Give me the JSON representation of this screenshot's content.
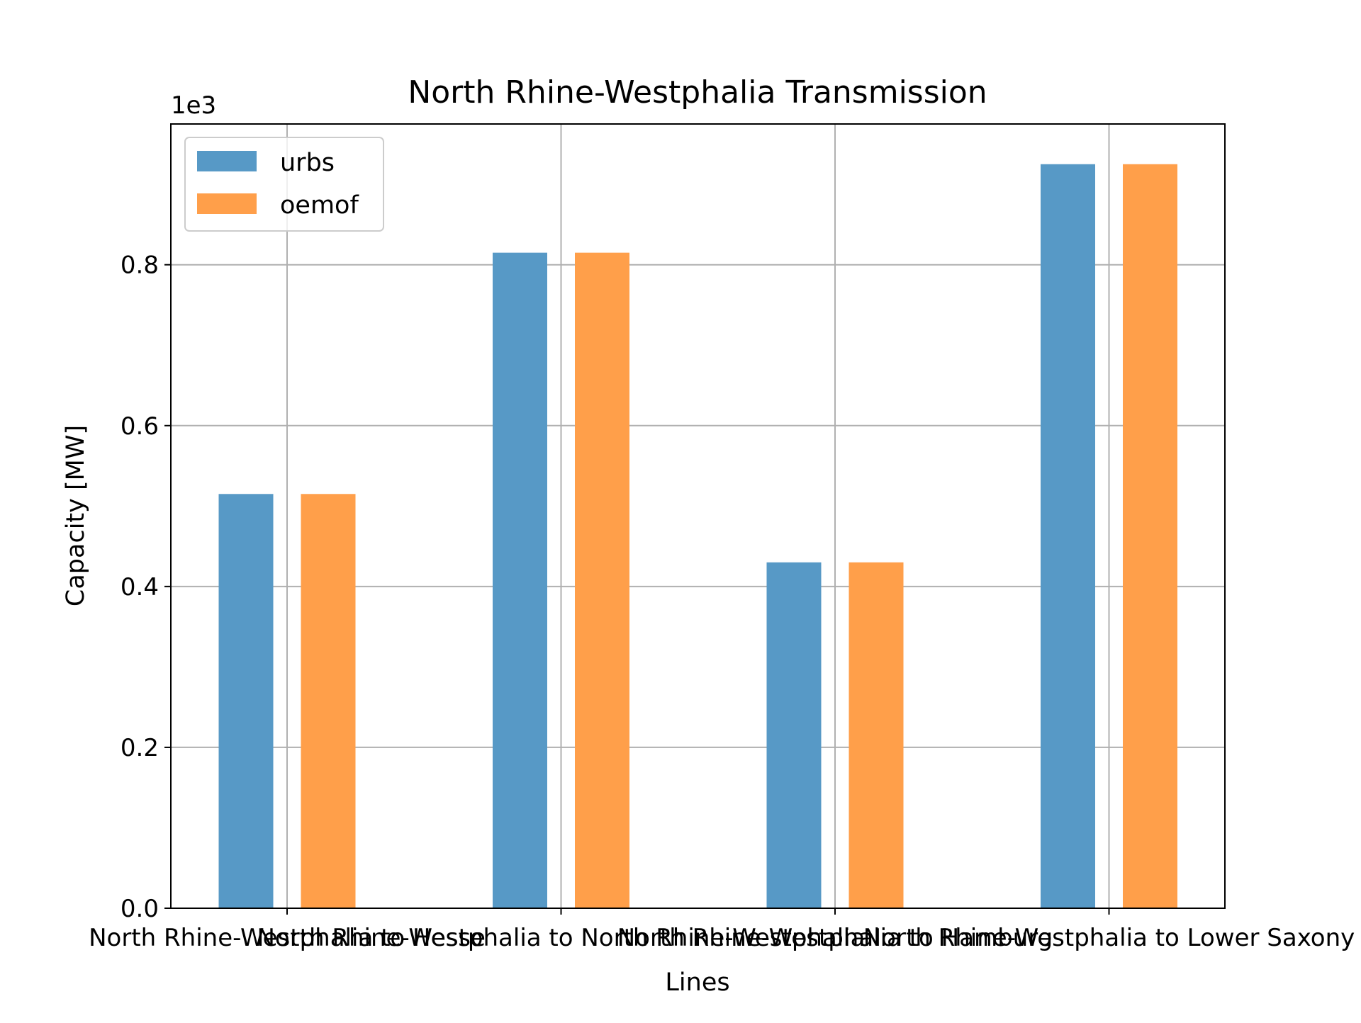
{
  "chart_data": {
    "type": "bar",
    "title": "North Rhine-Westphalia Transmission",
    "xlabel": "Lines",
    "ylabel": "Capacity [MW]",
    "y_multiplier": "1e3",
    "categories": [
      "North Rhine-Westphalia to Hesse",
      "North Rhine-Westphalia to North Rhine-Westphalia",
      "North Rhine-Westphalia to Hamburg",
      "North Rhine-Westphalia to Lower Saxony"
    ],
    "series": [
      {
        "name": "urbs",
        "color": "#5799c6",
        "values": [
          515,
          815,
          430,
          925
        ]
      },
      {
        "name": "oemof",
        "color": "#ff9f4a",
        "values": [
          515,
          815,
          430,
          925
        ]
      }
    ],
    "y_ticks": [
      0.0,
      0.2,
      0.4,
      0.6,
      0.8
    ],
    "y_tick_labels": [
      "0.0",
      "0.2",
      "0.4",
      "0.6",
      "0.8"
    ],
    "ylim": [
      0,
      975
    ],
    "grid": true,
    "legend_position": "upper-left"
  }
}
